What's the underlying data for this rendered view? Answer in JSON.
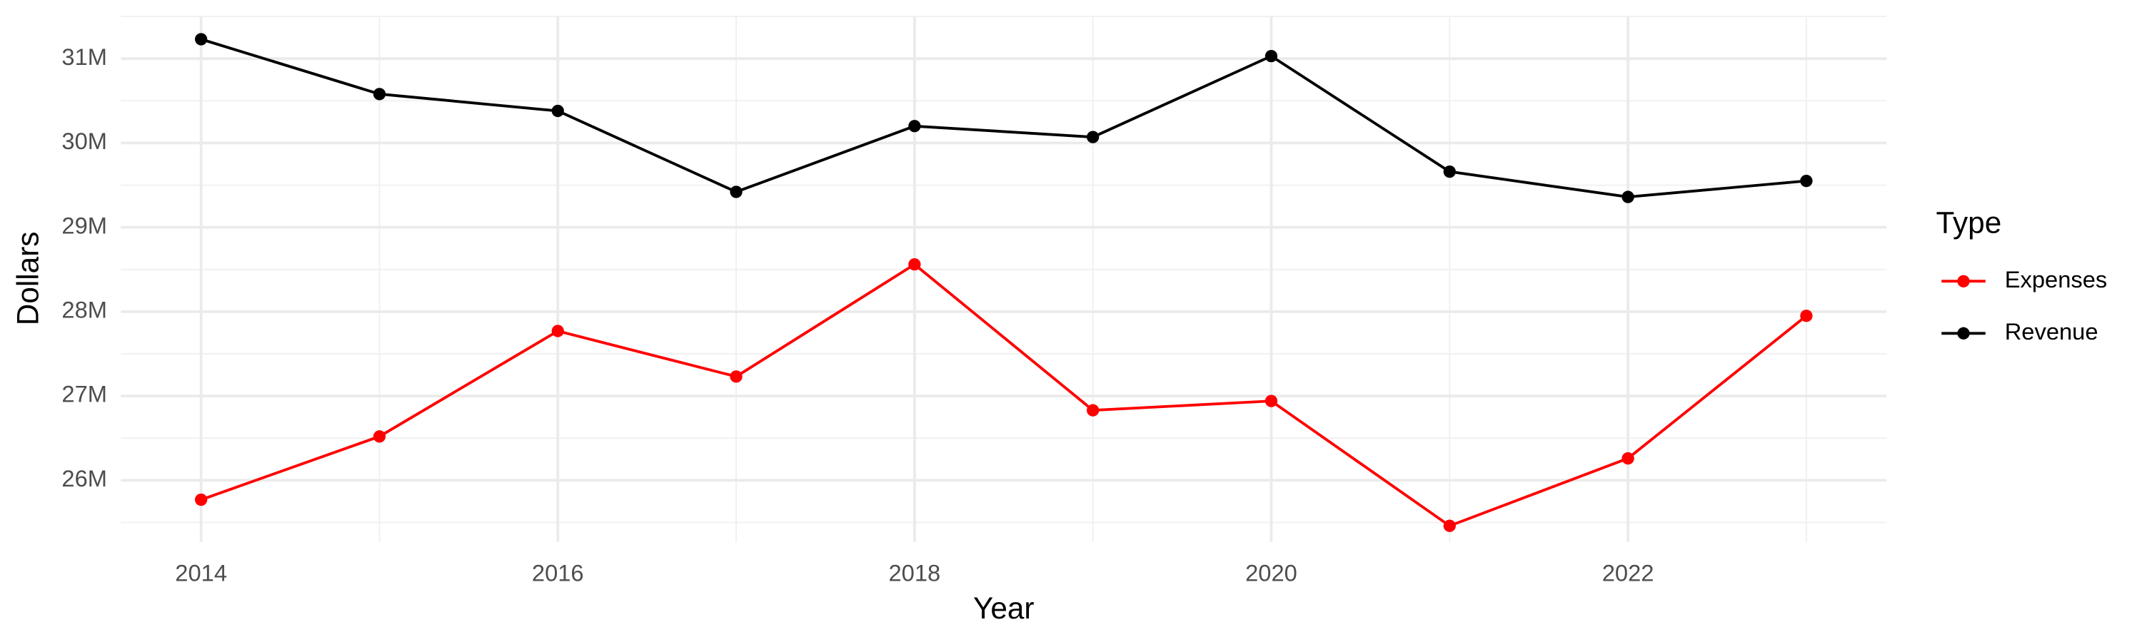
{
  "chart_data": {
    "type": "line",
    "x_label": "Year",
    "y_label": "Dollars",
    "x": [
      2014,
      2015,
      2016,
      2017,
      2018,
      2019,
      2020,
      2021,
      2022,
      2023
    ],
    "series": [
      {
        "name": "Expenses",
        "color": "#ff0000",
        "values": [
          25770000,
          26520000,
          27770000,
          27230000,
          28560000,
          26830000,
          26940000,
          25460000,
          26260000,
          27950000
        ]
      },
      {
        "name": "Revenue",
        "color": "#000000",
        "values": [
          31230000,
          30580000,
          30380000,
          29420000,
          30200000,
          30070000,
          31030000,
          29660000,
          29360000,
          29550000
        ]
      }
    ],
    "xlim": [
      2013.55,
      2023.45
    ],
    "xticks": [
      2014,
      2016,
      2018,
      2020,
      2022
    ],
    "ylim": [
      25270000,
      31500000
    ],
    "yticks": [
      {
        "value": 26000000,
        "label": "26M"
      },
      {
        "value": 27000000,
        "label": "27M"
      },
      {
        "value": 28000000,
        "label": "28M"
      },
      {
        "value": 29000000,
        "label": "29M"
      },
      {
        "value": 30000000,
        "label": "30M"
      },
      {
        "value": 31000000,
        "label": "31M"
      }
    ],
    "grid": true,
    "legend_title": "Type",
    "legend_position": "right"
  }
}
